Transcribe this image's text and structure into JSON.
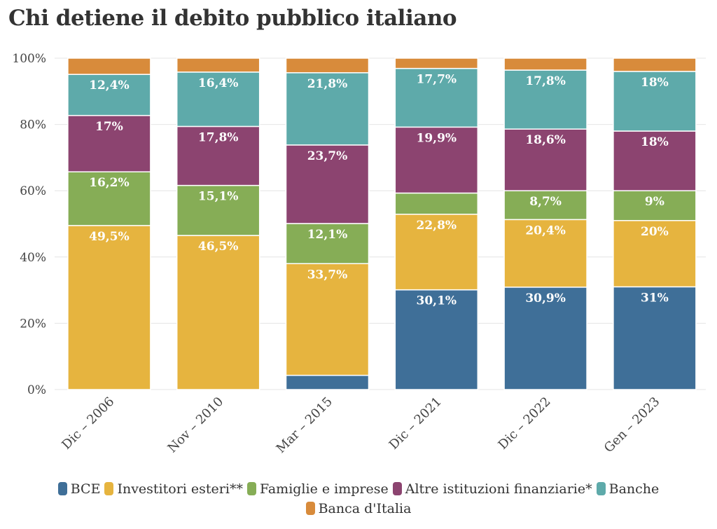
{
  "title": "Chi detiene il debito pubblico italiano",
  "chart_data": {
    "type": "bar",
    "stacked": true,
    "categories": [
      "Dic – 2006",
      "Nov – 2010",
      "Mar – 2015",
      "Dic – 2021",
      "Dic – 2022",
      "Gen – 2023"
    ],
    "ylim": [
      0,
      100
    ],
    "yticks": [
      "0%",
      "20%",
      "40%",
      "60%",
      "80%",
      "100%"
    ],
    "grid": true,
    "legend_position": "bottom",
    "series": [
      {
        "name": "BCE",
        "color": "#3f6f98",
        "values": [
          0,
          0,
          4.3,
          30.1,
          30.9,
          31
        ],
        "labels": [
          "",
          "",
          "",
          "30,1%",
          "30,9%",
          "31%"
        ]
      },
      {
        "name": "Investitori esteri**",
        "color": "#e6b43f",
        "values": [
          49.5,
          46.5,
          33.7,
          22.8,
          20.4,
          20
        ],
        "labels": [
          "49,5%",
          "46,5%",
          "33,7%",
          "22,8%",
          "20,4%",
          "20%"
        ]
      },
      {
        "name": "Famiglie e imprese",
        "color": "#86ad56",
        "values": [
          16.2,
          15.1,
          12.1,
          6.4,
          8.7,
          9
        ],
        "labels": [
          "16,2%",
          "15,1%",
          "12,1%",
          "",
          "8,7%",
          "9%"
        ]
      },
      {
        "name": "Altre istituzioni finanziarie*",
        "color": "#8c4470",
        "values": [
          17,
          17.8,
          23.7,
          19.9,
          18.6,
          18
        ],
        "labels": [
          "17%",
          "17,8%",
          "23,7%",
          "19,9%",
          "18,6%",
          "18%"
        ]
      },
      {
        "name": "Banche",
        "color": "#5eaaaa",
        "values": [
          12.4,
          16.4,
          21.8,
          17.7,
          17.8,
          18
        ],
        "labels": [
          "12,4%",
          "16,4%",
          "21,8%",
          "17,7%",
          "17,8%",
          "18%"
        ]
      },
      {
        "name": "Banca d'Italia",
        "color": "#d88b3b",
        "values": [
          4.9,
          4.2,
          4.4,
          3.1,
          3.6,
          4
        ],
        "labels": [
          "",
          "",
          "",
          "",
          "",
          ""
        ]
      }
    ]
  }
}
